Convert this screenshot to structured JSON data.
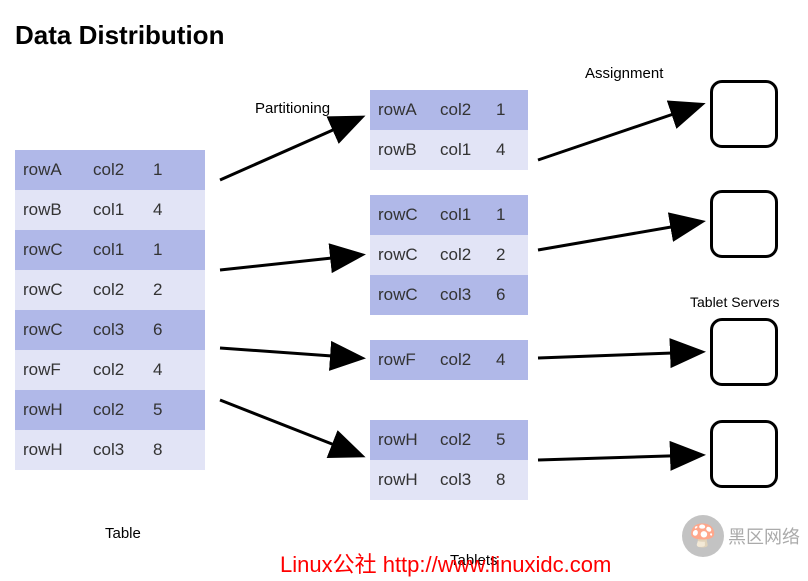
{
  "title": "Data Distribution",
  "colors": {
    "row_dark": "#b0b8e8",
    "row_light": "#e2e4f6",
    "text": "#333333",
    "arrow": "#000000",
    "watermark": "#ff0000"
  },
  "labels": {
    "partitioning": "Partitioning",
    "assignment": "Assignment",
    "table": "Table",
    "tablets": "Tablets",
    "tablet_servers": "Tablet Servers"
  },
  "main_table": {
    "caption": "Table",
    "rows": [
      [
        "rowA",
        "col2",
        "1"
      ],
      [
        "rowB",
        "col1",
        "4"
      ],
      [
        "rowC",
        "col1",
        "1"
      ],
      [
        "rowC",
        "col2",
        "2"
      ],
      [
        "rowC",
        "col3",
        "6"
      ],
      [
        "rowF",
        "col2",
        "4"
      ],
      [
        "rowH",
        "col2",
        "5"
      ],
      [
        "rowH",
        "col3",
        "8"
      ]
    ]
  },
  "tablets": [
    {
      "rows": [
        [
          "rowA",
          "col2",
          "1"
        ],
        [
          "rowB",
          "col1",
          "4"
        ]
      ]
    },
    {
      "rows": [
        [
          "rowC",
          "col1",
          "1"
        ],
        [
          "rowC",
          "col2",
          "2"
        ],
        [
          "rowC",
          "col3",
          "6"
        ]
      ]
    },
    {
      "rows": [
        [
          "rowF",
          "col2",
          "4"
        ]
      ]
    },
    {
      "rows": [
        [
          "rowH",
          "col2",
          "5"
        ],
        [
          "rowH",
          "col3",
          "8"
        ]
      ]
    }
  ],
  "server_count": 4,
  "watermark_text": "Linux公社 http://www.linuxidc.com",
  "watermark_logo_text": "黑区网络"
}
